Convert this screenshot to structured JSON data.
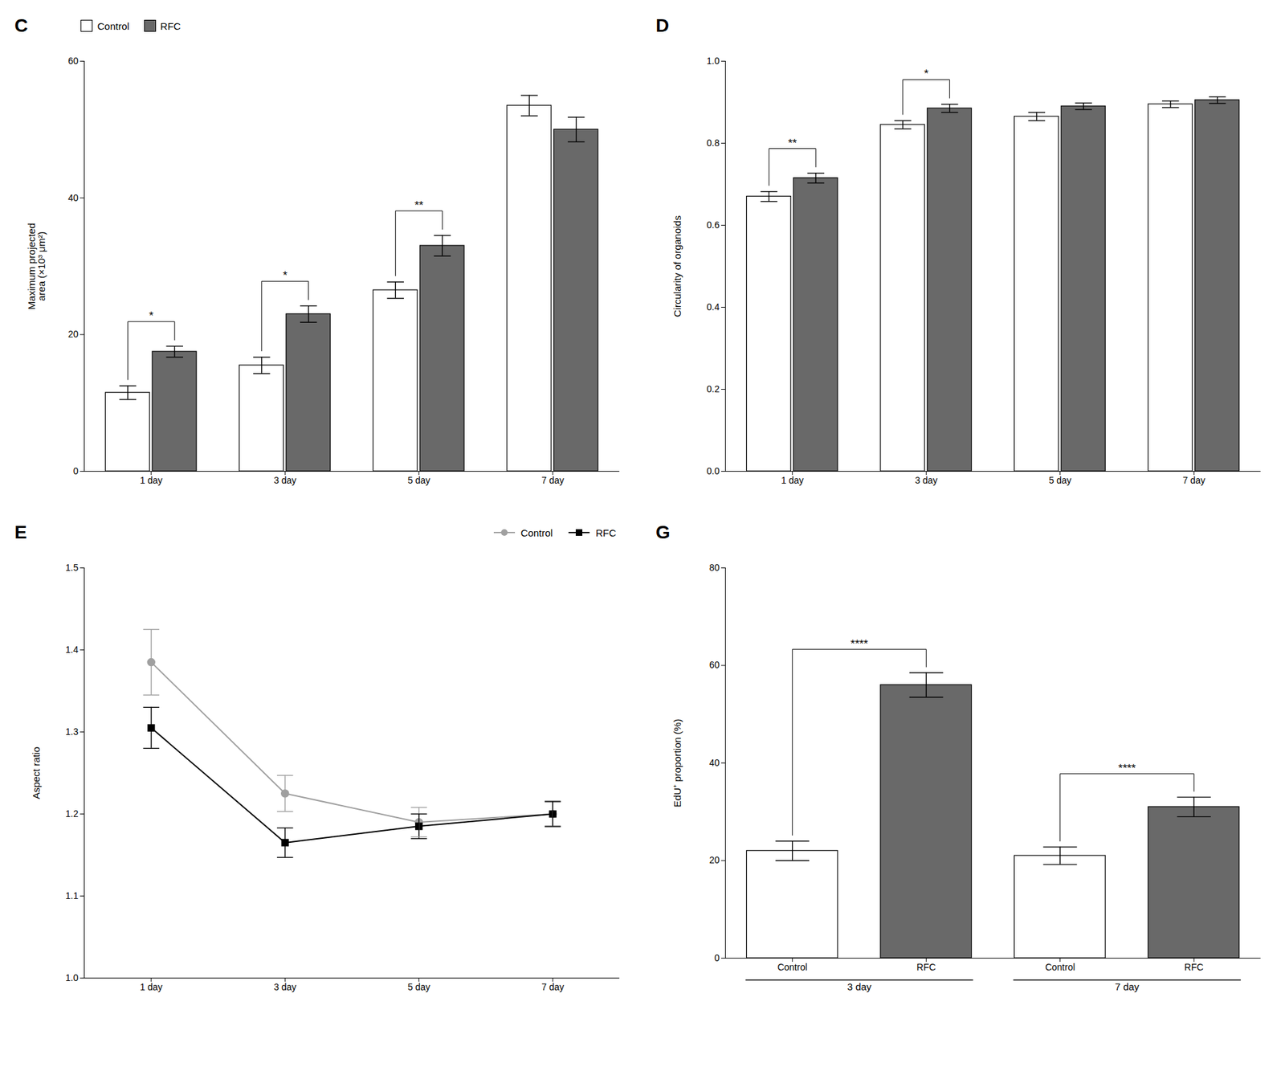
{
  "chart_data": [
    {
      "type": "bar",
      "title": "C",
      "ylabel": "Maximum projected\narea (×10³ μm²)",
      "categories": [
        "1 day",
        "3 day",
        "5 day",
        "7 day"
      ],
      "series": [
        {
          "name": "Control",
          "color": "#ffffff",
          "values": [
            11.5,
            15.5,
            26.5,
            53.5
          ],
          "errors": [
            1.0,
            1.2,
            1.2,
            1.5
          ]
        },
        {
          "name": "RFC",
          "color": "#696969",
          "values": [
            17.5,
            23.0,
            33.0,
            50.0
          ],
          "errors": [
            0.8,
            1.2,
            1.5,
            1.8
          ]
        }
      ],
      "ylim": [
        0,
        60
      ],
      "yticks": [
        0,
        20,
        40,
        60
      ],
      "legend": "upper left",
      "grid": false,
      "annotations": [
        {
          "text": "*",
          "x": "1 day"
        },
        {
          "text": "*",
          "x": "3 day"
        },
        {
          "text": "**",
          "x": "5 day"
        }
      ]
    },
    {
      "type": "bar",
      "title": "D",
      "ylabel": "Circularity of organoids",
      "categories": [
        "1 day",
        "3 day",
        "5 day",
        "7 day"
      ],
      "series": [
        {
          "name": "Control",
          "color": "#ffffff",
          "values": [
            0.67,
            0.845,
            0.865,
            0.895
          ],
          "errors": [
            0.012,
            0.01,
            0.01,
            0.008
          ]
        },
        {
          "name": "RFC",
          "color": "#696969",
          "values": [
            0.715,
            0.885,
            0.89,
            0.905
          ],
          "errors": [
            0.012,
            0.01,
            0.008,
            0.008
          ]
        }
      ],
      "ylim": [
        0.0,
        1.0
      ],
      "yticks": [
        {
          "value": 0,
          "label": "0.0"
        },
        0.2,
        0.4,
        0.6,
        0.8,
        {
          "value": 1,
          "label": "1.0"
        }
      ],
      "grid": false,
      "annotations": [
        {
          "text": "**",
          "x": "1 day"
        },
        {
          "text": "*",
          "x": "3 day"
        }
      ]
    },
    {
      "type": "line",
      "title": "E",
      "ylabel": "Aspect ratio",
      "categories": [
        "1 day",
        "3 day",
        "5 day",
        "7 day"
      ],
      "series": [
        {
          "name": "Control",
          "color": "#a0a0a0",
          "marker": "circle",
          "values": [
            1.385,
            1.225,
            1.19,
            1.2
          ],
          "errors": [
            0.04,
            0.022,
            0.018,
            0.016
          ]
        },
        {
          "name": "RFC",
          "color": "#000000",
          "marker": "square",
          "values": [
            1.305,
            1.165,
            1.185,
            1.2
          ],
          "errors": [
            0.025,
            0.018,
            0.015,
            0.015
          ]
        }
      ],
      "ylim": [
        1.0,
        1.5
      ],
      "yticks": [
        {
          "value": 1,
          "label": "1.0"
        },
        1.1,
        1.2,
        1.3,
        1.4,
        1.5
      ],
      "legend": "upper right",
      "grid": false
    },
    {
      "type": "bar",
      "title": "G",
      "ylabel": "EdU⁺ proportion (%)",
      "categories": [
        "Control",
        "RFC",
        "Control",
        "RFC"
      ],
      "values": [
        22.0,
        56.0,
        21.0,
        31.0
      ],
      "errors": [
        2.0,
        2.5,
        1.8,
        2.0
      ],
      "colors": [
        "#ffffff",
        "#696969",
        "#ffffff",
        "#696969"
      ],
      "ylim": [
        0,
        80
      ],
      "yticks": [
        0,
        20,
        40,
        60,
        80
      ],
      "grid": false,
      "groups": [
        {
          "label": "3 day",
          "x": [
            0,
            1
          ]
        },
        {
          "label": "7 day",
          "x": [
            2,
            3
          ]
        }
      ],
      "annotations": [
        {
          "text": "****",
          "x": [
            0,
            1
          ]
        },
        {
          "text": "****",
          "x": [
            2,
            3
          ]
        }
      ]
    }
  ]
}
